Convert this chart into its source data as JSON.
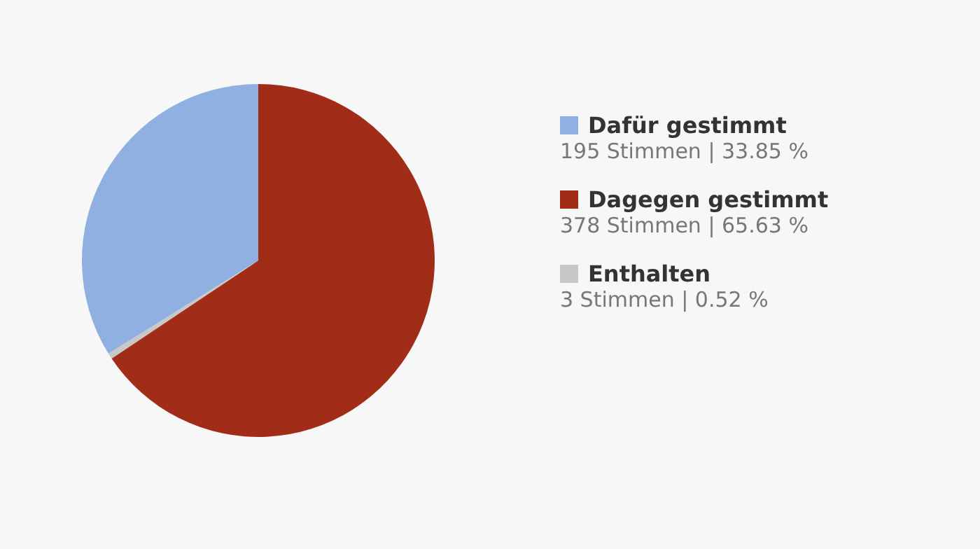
{
  "chart_data": {
    "type": "pie",
    "categories": [
      "Dafür gestimmt",
      "Dagegen gestimmt",
      "Enthalten"
    ],
    "values": [
      195,
      378,
      3
    ],
    "colors": [
      "#8fb0e0",
      "#a12d19",
      "#c8c8c8"
    ],
    "value_labels": [
      "195 Stimmen | 33.85 %",
      "378 Stimmen | 65.63 %",
      "3 Stimmen | 0.52 %"
    ],
    "legend": "right"
  }
}
